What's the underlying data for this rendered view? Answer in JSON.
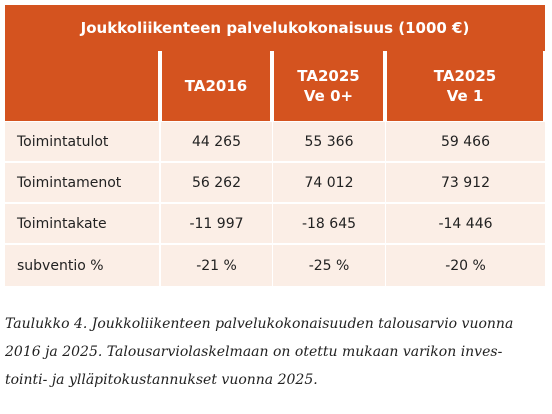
{
  "table": {
    "title": "Joukkoliikenteen palvelukokonaisuus (1000 €)",
    "columns": [
      [
        "TA2016"
      ],
      [
        "TA2025",
        "Ve 0+"
      ],
      [
        "TA2025",
        "Ve 1"
      ]
    ],
    "rows": [
      [
        "Toimintatulot",
        "44 265",
        "55 366",
        "59 466"
      ],
      [
        "Toimintamenot",
        "56 262",
        "74 012",
        "73 912"
      ],
      [
        "Toimintakate",
        "-11 997",
        "-18 645",
        "-14 446"
      ],
      [
        "subventio %",
        "-21 %",
        "-25 %",
        "-20 %"
      ]
    ]
  },
  "caption": [
    "Taulukko 4. Joukkoliikenteen palvelukokonaisuuden talousarvio vuonna",
    "2016 ja 2025. Talousarviolaskelmaan on otettu mukaan varikon inves-",
    "tointi- ja ylläpitokustannukset vuonna 2025."
  ]
}
